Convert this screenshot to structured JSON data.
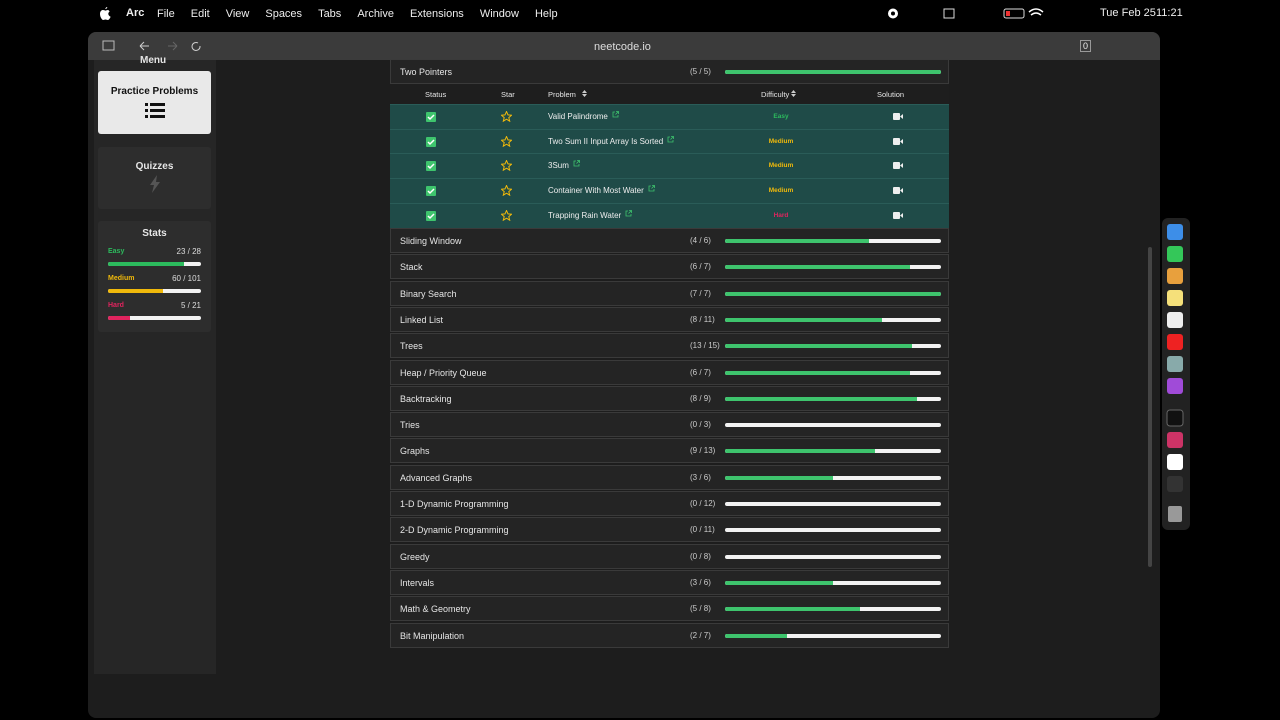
{
  "menubar": {
    "app": "Arc",
    "menus": [
      "File",
      "Edit",
      "View",
      "Spaces",
      "Tabs",
      "Archive",
      "Extensions",
      "Window",
      "Help"
    ],
    "date": "Tue Feb 25",
    "time": "11:21"
  },
  "browser": {
    "url": "neetcode.io",
    "badge": "0"
  },
  "sidebar": {
    "menu_title": "Menu",
    "practice": "Practice Problems",
    "quizzes": "Quizzes",
    "stats": {
      "title": "Stats",
      "rows": [
        {
          "level": "Easy",
          "progress": "23 / 28",
          "solved": 23,
          "total": 28,
          "color": "#2cbb5d"
        },
        {
          "level": "Medium",
          "progress": "60 / 101",
          "solved": 60,
          "total": 101,
          "color": "#f0b90b"
        },
        {
          "level": "Hard",
          "progress": "5 / 21",
          "solved": 5,
          "total": 21,
          "color": "#e0245e"
        }
      ]
    }
  },
  "topics": [
    {
      "name": "Two Pointers",
      "progress": "(5 / 5)",
      "solved": 5,
      "total": 5
    },
    {
      "name": "Sliding Window",
      "progress": "(4 / 6)",
      "solved": 4,
      "total": 6
    },
    {
      "name": "Stack",
      "progress": "(6 / 7)",
      "solved": 6,
      "total": 7
    },
    {
      "name": "Binary Search",
      "progress": "(7 / 7)",
      "solved": 7,
      "total": 7
    },
    {
      "name": "Linked List",
      "progress": "(8 / 11)",
      "solved": 8,
      "total": 11
    },
    {
      "name": "Trees",
      "progress": "(13 / 15)",
      "solved": 13,
      "total": 15
    },
    {
      "name": "Heap / Priority Queue",
      "progress": "(6 / 7)",
      "solved": 6,
      "total": 7
    },
    {
      "name": "Backtracking",
      "progress": "(8 / 9)",
      "solved": 8,
      "total": 9
    },
    {
      "name": "Tries",
      "progress": "(0 / 3)",
      "solved": 0,
      "total": 3
    },
    {
      "name": "Graphs",
      "progress": "(9 / 13)",
      "solved": 9,
      "total": 13
    },
    {
      "name": "Advanced Graphs",
      "progress": "(3 / 6)",
      "solved": 3,
      "total": 6
    },
    {
      "name": "1-D Dynamic Programming",
      "progress": "(0 / 12)",
      "solved": 0,
      "total": 12
    },
    {
      "name": "2-D Dynamic Programming",
      "progress": "(0 / 11)",
      "solved": 0,
      "total": 11
    },
    {
      "name": "Greedy",
      "progress": "(0 / 8)",
      "solved": 0,
      "total": 8
    },
    {
      "name": "Intervals",
      "progress": "(3 / 6)",
      "solved": 3,
      "total": 6
    },
    {
      "name": "Math & Geometry",
      "progress": "(5 / 8)",
      "solved": 5,
      "total": 8
    },
    {
      "name": "Bit Manipulation",
      "progress": "(2 / 7)",
      "solved": 2,
      "total": 7
    }
  ],
  "table": {
    "headers": [
      "Status",
      "Star",
      "Problem",
      "Difficulty",
      "Solution"
    ],
    "rows": [
      {
        "problem": "Valid Palindrome",
        "difficulty": "Easy",
        "difficulty_color": "#2cbb5d"
      },
      {
        "problem": "Two Sum II Input Array Is Sorted",
        "difficulty": "Medium",
        "difficulty_color": "#f0b90b"
      },
      {
        "problem": "3Sum",
        "difficulty": "Medium",
        "difficulty_color": "#f0b90b"
      },
      {
        "problem": "Container With Most Water",
        "difficulty": "Medium",
        "difficulty_color": "#f0b90b"
      },
      {
        "problem": "Trapping Rain Water",
        "difficulty": "Hard",
        "difficulty_color": "#e0245e"
      }
    ]
  }
}
